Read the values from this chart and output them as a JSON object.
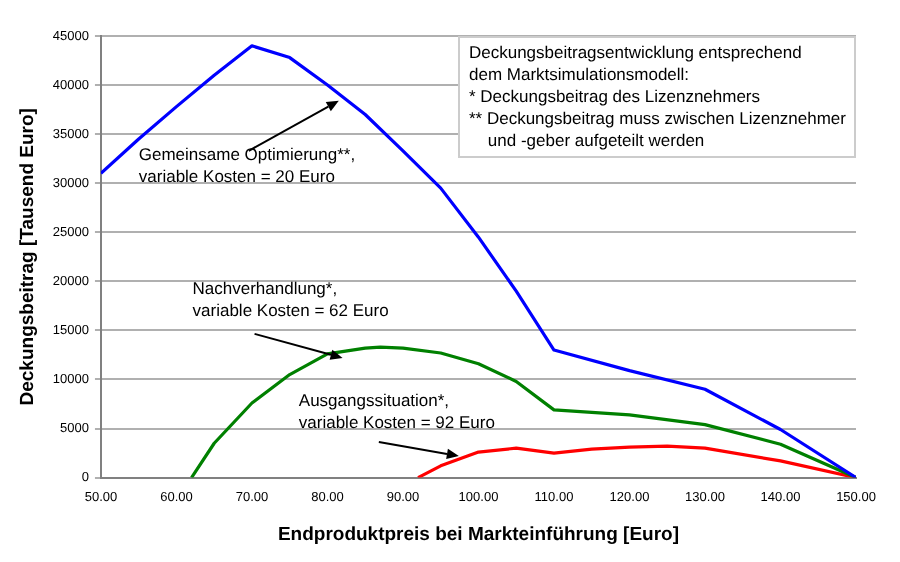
{
  "chart_data": {
    "type": "line",
    "xlabel": "Endproduktpreis bei Markteinführung [Euro]",
    "ylabel": "Deckungsbeitrag [Tausend Euro]",
    "xlim": [
      50,
      150
    ],
    "xticks": [
      {
        "value": 50,
        "label": "50.00"
      },
      {
        "value": 60,
        "label": "60.00"
      },
      {
        "value": 70,
        "label": "70.00"
      },
      {
        "value": 80,
        "label": "80.00"
      },
      {
        "value": 90,
        "label": "90.00"
      },
      {
        "value": 100,
        "label": "100.00"
      },
      {
        "value": 110,
        "label": "110.00"
      },
      {
        "value": 120,
        "label": "120.00"
      },
      {
        "value": 130,
        "label": "130.00"
      },
      {
        "value": 140,
        "label": "140.00"
      },
      {
        "value": 150,
        "label": "150.00"
      }
    ],
    "ylim": [
      0,
      45000
    ],
    "yticks": [
      0,
      5000,
      10000,
      15000,
      20000,
      25000,
      30000,
      35000,
      40000,
      45000
    ],
    "grid": "y",
    "legend": false,
    "marker": "none",
    "line_style": "solid",
    "series": [
      {
        "color": "#0000ff",
        "x": [
          50,
          55,
          60,
          65,
          70,
          75,
          80,
          85,
          90,
          95,
          100,
          105,
          110,
          120,
          130,
          140,
          150
        ],
        "values": [
          31000,
          34500,
          37800,
          41000,
          44000,
          42800,
          40000,
          37000,
          33300,
          29500,
          24500,
          19000,
          13000,
          10900,
          9000,
          4900,
          0
        ]
      },
      {
        "color": "#008000",
        "x": [
          62,
          65,
          70,
          75,
          80,
          85,
          87,
          90,
          95,
          100,
          105,
          110,
          120,
          130,
          140,
          150
        ],
        "values": [
          0,
          3500,
          7600,
          10500,
          12600,
          13200,
          13300,
          13200,
          12700,
          11600,
          9800,
          6900,
          6400,
          5400,
          3400,
          0
        ]
      },
      {
        "color": "#ff0000",
        "x": [
          92,
          95,
          100,
          105,
          110,
          115,
          120,
          125,
          130,
          140,
          150
        ],
        "values": [
          0,
          1200,
          2600,
          3000,
          2500,
          2900,
          3100,
          3200,
          3000,
          1700,
          0
        ]
      }
    ],
    "annotations": [
      {
        "text": "Gemeinsame Optimierung**,\nvariable Kosten = 20 Euro",
        "x": 81.5,
        "y": 38400
      },
      {
        "text": "Nachverhandlung*,\nvariable Kosten = 62 Euro",
        "x": 82,
        "y": 12200
      },
      {
        "text": "Ausgangssituation*,\nvariable Kosten = 92 Euro",
        "x": 97.4,
        "y": 2200
      },
      "Deckungsbeitragsentwicklung entsprechend\ndem Marktsimulationsmodell:\n* Deckungsbeitrag des Lizenznehmers\n** Deckungsbeitrag muss zwischen Lizenznehmer\n    und -geber aufgeteilt werden"
    ]
  }
}
